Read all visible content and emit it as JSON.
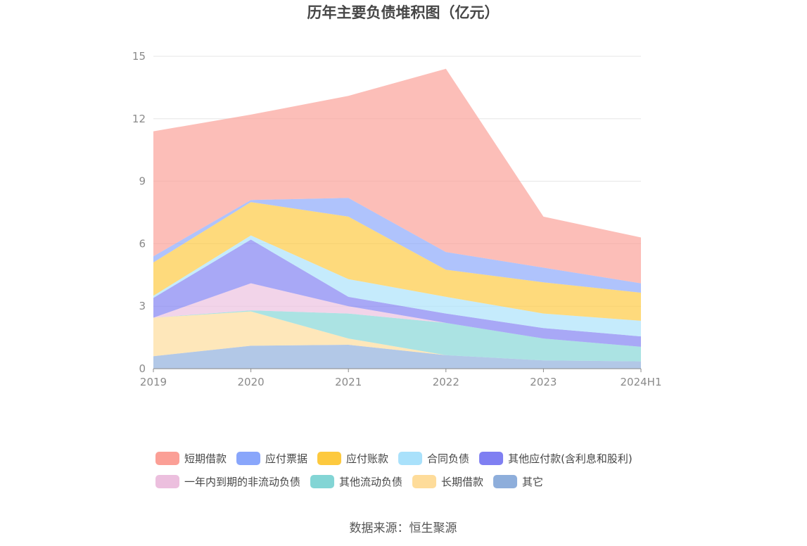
{
  "chart_data": {
    "type": "area",
    "stacked": true,
    "title": "历年主要负债堆积图（亿元）",
    "categories": [
      "2019",
      "2020",
      "2021",
      "2022",
      "2023",
      "2024H1"
    ],
    "ylim": [
      0,
      15
    ],
    "yticks": [
      "0",
      "3",
      "6",
      "9",
      "12",
      "15"
    ],
    "grid": true,
    "legend_position": "bottom",
    "series": [
      {
        "name": "其它",
        "color": "#8eaedb",
        "values": [
          0.6,
          1.1,
          1.15,
          0.65,
          0.4,
          0.35
        ]
      },
      {
        "name": "长期借款",
        "color": "#fedc9a",
        "values": [
          1.85,
          1.65,
          0.3,
          0.0,
          0.0,
          0.0
        ]
      },
      {
        "name": "其他流动负债",
        "color": "#83d5d5",
        "values": [
          0.0,
          0.05,
          1.2,
          1.55,
          1.05,
          0.7
        ]
      },
      {
        "name": "一年内到期的非流动负债",
        "color": "#ecbfde",
        "values": [
          0.0,
          1.3,
          0.35,
          0.0,
          0.0,
          0.0
        ]
      },
      {
        "name": "其他应付款(含利息和股利)",
        "color": "#7f7ff2",
        "values": [
          0.95,
          2.1,
          0.45,
          0.45,
          0.5,
          0.5
        ]
      },
      {
        "name": "合同负债",
        "color": "#a9e1fb",
        "values": [
          0.1,
          0.2,
          0.85,
          0.8,
          0.7,
          0.75
        ]
      },
      {
        "name": "应付账款",
        "color": "#fdc93e",
        "values": [
          1.6,
          1.6,
          3.0,
          1.3,
          1.5,
          1.35
        ]
      },
      {
        "name": "应付票据",
        "color": "#89a6fb",
        "values": [
          0.3,
          0.1,
          0.9,
          0.85,
          0.7,
          0.45
        ]
      },
      {
        "name": "短期借款",
        "color": "#fb9f96",
        "values": [
          6.0,
          4.1,
          4.9,
          8.8,
          2.45,
          2.2
        ]
      }
    ],
    "legend_order": [
      "短期借款",
      "应付票据",
      "应付账款",
      "合同负债",
      "其他应付款(含利息和股利)",
      "一年内到期的非流动负债",
      "其他流动负债",
      "长期借款",
      "其它"
    ]
  },
  "source_text": "数据来源：恒生聚源"
}
